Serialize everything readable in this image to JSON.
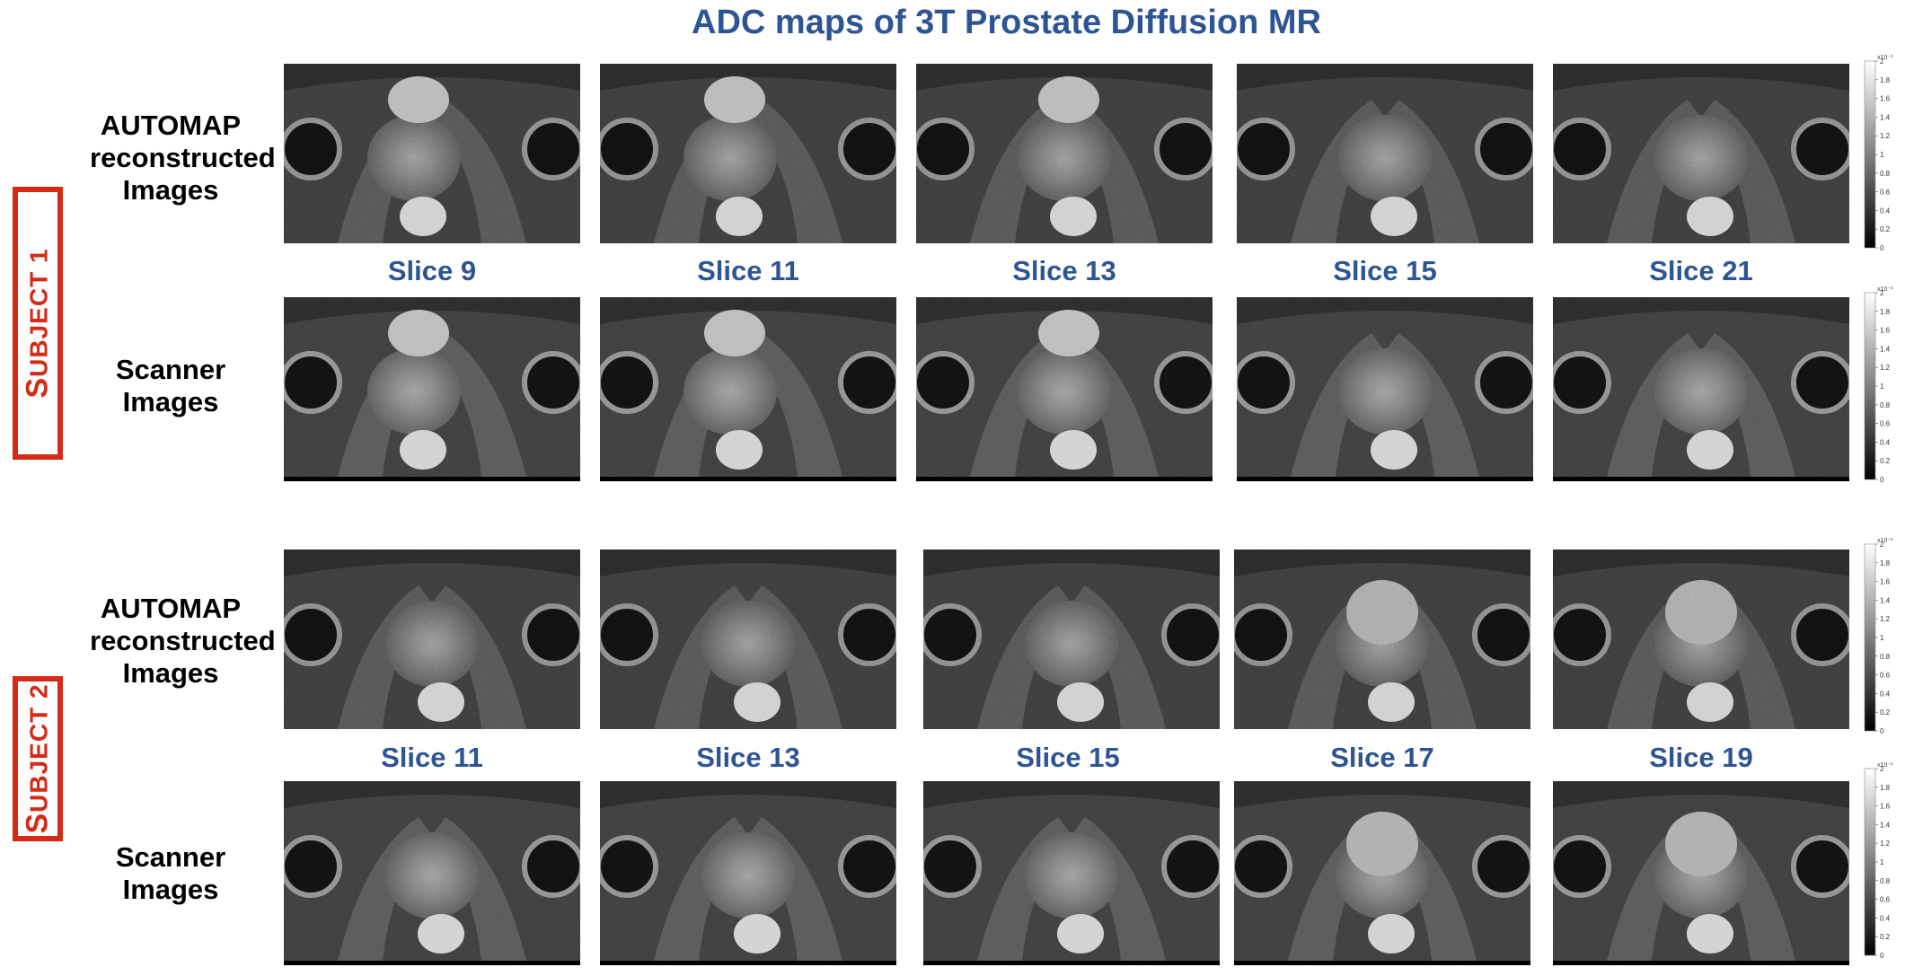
{
  "title": "ADC maps of 3T Prostate Diffusion MR",
  "subjects": [
    {
      "label_first": "S",
      "label_rest": "UBJECT 1",
      "rows": {
        "automap": [
          "AUTOMAP",
          "reconstructed",
          "Images"
        ],
        "scanner": [
          "Scanner",
          "Images"
        ]
      },
      "slices": [
        "Slice 9",
        "Slice 11",
        "Slice 13",
        "Slice 15",
        "Slice 21"
      ]
    },
    {
      "label_first": "S",
      "label_rest": "UBJECT 2",
      "rows": {
        "automap": [
          "AUTOMAP",
          "reconstructed",
          "Images"
        ],
        "scanner": [
          "Scanner",
          "Images"
        ]
      },
      "slices": [
        "Slice 11",
        "Slice 13",
        "Slice 15",
        "Slice 17",
        "Slice 19"
      ]
    }
  ],
  "colorbar": {
    "exponent": "x10⁻³",
    "ticks": [
      "2",
      "1.8",
      "1.6",
      "1.4",
      "1.2",
      "1",
      "0.8",
      "0.6",
      "0.4",
      "0.2",
      "0"
    ]
  },
  "colors": {
    "title": "#2e5593",
    "subject_box": "#d42a16"
  }
}
